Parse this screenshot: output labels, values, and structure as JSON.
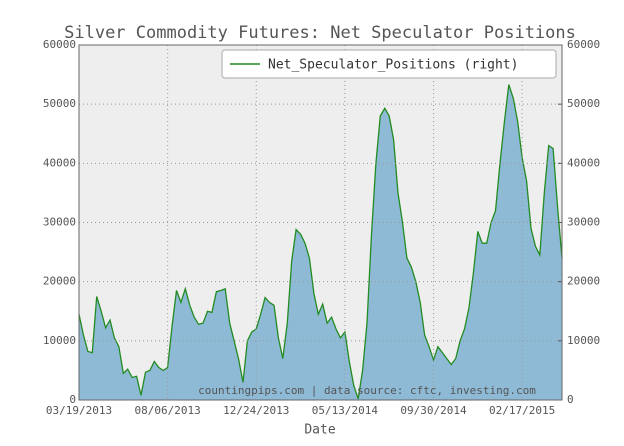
{
  "chart_data": {
    "type": "area",
    "title": "Silver Commodity Futures: Net Speculator Positions",
    "xlabel": "Date",
    "annotation": "countingpips.com | data source: cftc, investing.com",
    "x": [
      "2013-03-19",
      "2013-03-26",
      "2013-04-02",
      "2013-04-09",
      "2013-04-16",
      "2013-04-23",
      "2013-04-30",
      "2013-05-07",
      "2013-05-14",
      "2013-05-21",
      "2013-05-28",
      "2013-06-04",
      "2013-06-11",
      "2013-06-18",
      "2013-06-25",
      "2013-07-02",
      "2013-07-09",
      "2013-07-16",
      "2013-07-23",
      "2013-07-30",
      "2013-08-06",
      "2013-08-13",
      "2013-08-20",
      "2013-08-27",
      "2013-09-03",
      "2013-09-10",
      "2013-09-17",
      "2013-09-24",
      "2013-10-01",
      "2013-10-08",
      "2013-10-15",
      "2013-10-22",
      "2013-10-29",
      "2013-11-05",
      "2013-11-12",
      "2013-11-19",
      "2013-11-26",
      "2013-12-03",
      "2013-12-10",
      "2013-12-17",
      "2013-12-24",
      "2013-12-31",
      "2014-01-07",
      "2014-01-14",
      "2014-01-21",
      "2014-01-28",
      "2014-02-04",
      "2014-02-11",
      "2014-02-18",
      "2014-02-25",
      "2014-03-04",
      "2014-03-11",
      "2014-03-18",
      "2014-03-25",
      "2014-04-01",
      "2014-04-08",
      "2014-04-15",
      "2014-04-22",
      "2014-04-29",
      "2014-05-06",
      "2014-05-13",
      "2014-05-20",
      "2014-05-27",
      "2014-06-03",
      "2014-06-10",
      "2014-06-17",
      "2014-06-24",
      "2014-07-01",
      "2014-07-08",
      "2014-07-15",
      "2014-07-22",
      "2014-07-29",
      "2014-08-05",
      "2014-08-12",
      "2014-08-19",
      "2014-08-26",
      "2014-09-02",
      "2014-09-09",
      "2014-09-16",
      "2014-09-23",
      "2014-09-30",
      "2014-10-07",
      "2014-10-14",
      "2014-10-21",
      "2014-10-28",
      "2014-11-04",
      "2014-11-11",
      "2014-11-18",
      "2014-11-25",
      "2014-12-02",
      "2014-12-09",
      "2014-12-16",
      "2014-12-23",
      "2014-12-30",
      "2015-01-06",
      "2015-01-13",
      "2015-01-20",
      "2015-01-27",
      "2015-02-03",
      "2015-02-10",
      "2015-02-17",
      "2015-02-24",
      "2015-03-03",
      "2015-03-10",
      "2015-03-17",
      "2015-03-24",
      "2015-03-31",
      "2015-04-07",
      "2015-04-14",
      "2015-04-21"
    ],
    "series": [
      {
        "name": "Net_Speculator_Positions (right)",
        "color": "#228b22",
        "fill": "#8fbad6",
        "axis": "y2",
        "values": [
          14500,
          11000,
          8200,
          8000,
          17500,
          15000,
          12200,
          13500,
          10500,
          9000,
          4500,
          5200,
          3800,
          4000,
          800,
          4700,
          5000,
          6500,
          5500,
          5000,
          5500,
          12500,
          18500,
          16500,
          18800,
          16000,
          14000,
          12800,
          13000,
          15000,
          14800,
          18300,
          18500,
          18800,
          13000,
          10000,
          7000,
          3000,
          10000,
          11500,
          12000,
          14500,
          17300,
          16500,
          16000,
          10500,
          7000,
          13000,
          23500,
          28800,
          28000,
          26500,
          24000,
          18000,
          14500,
          16200,
          13000,
          14000,
          12000,
          10500,
          11500,
          6500,
          2500,
          200,
          5000,
          13000,
          28000,
          40000,
          48000,
          49300,
          48000,
          44000,
          35000,
          30000,
          24000,
          22500,
          20000,
          16500,
          11000,
          9000,
          6800,
          9000,
          8000,
          7000,
          6000,
          7000,
          10000,
          12000,
          15500,
          21500,
          28500,
          26500,
          26500,
          30000,
          32000,
          40000,
          47000,
          53300,
          51000,
          47000,
          41000,
          37000,
          29000,
          26000,
          24500,
          35000,
          43000,
          42500,
          32500,
          24000
        ]
      }
    ],
    "xlim": [
      "2013-03-19",
      "2015-04-21"
    ],
    "xticks": [
      {
        "value": "2013-03-19",
        "label": "03/19/2013"
      },
      {
        "value": "2013-08-06",
        "label": "08/06/2013"
      },
      {
        "value": "2013-12-24",
        "label": "12/24/2013"
      },
      {
        "value": "2014-05-13",
        "label": "05/13/2014"
      },
      {
        "value": "2014-09-30",
        "label": "09/30/2014"
      },
      {
        "value": "2015-02-17",
        "label": "02/17/2015"
      }
    ],
    "ylim": [
      0,
      60000
    ],
    "yticks": [
      0,
      10000,
      20000,
      30000,
      40000,
      50000,
      60000
    ],
    "y2lim": [
      0,
      60000
    ],
    "y2ticks": [
      0,
      10000,
      20000,
      30000,
      40000,
      50000,
      60000
    ],
    "grid": true,
    "legend": "upper right"
  }
}
